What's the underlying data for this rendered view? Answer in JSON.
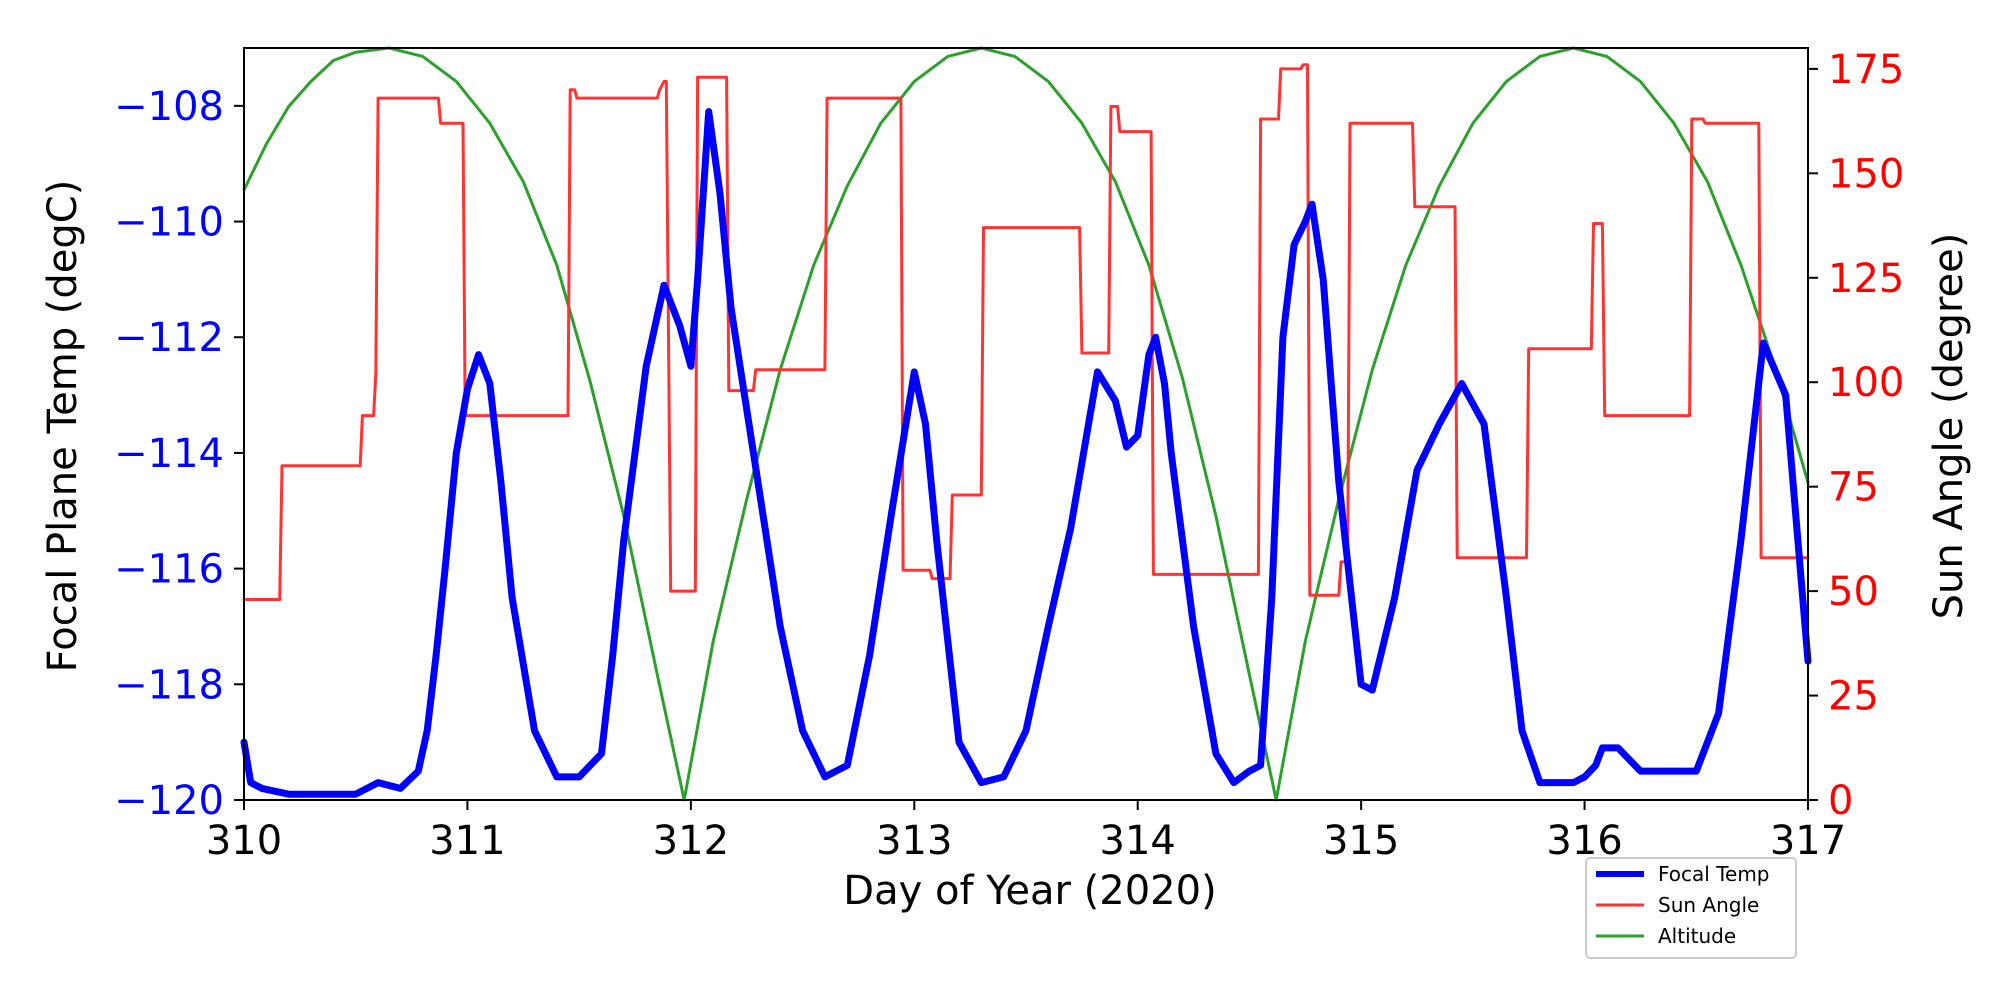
{
  "chart_data": {
    "type": "line",
    "title": "",
    "xlabel": "Day of Year (2020)",
    "ylabel_left": "Focal Plane Temp (degC)",
    "ylabel_right": "Sun Angle (degree)",
    "xlim": [
      310,
      317
    ],
    "ylim_left": [
      -120,
      -107
    ],
    "ylim_right": [
      0,
      180
    ],
    "x_ticks": [
      310,
      311,
      312,
      313,
      314,
      315,
      316,
      317
    ],
    "x_tick_labels": [
      "310",
      "311",
      "312",
      "313",
      "314",
      "315",
      "316",
      "317"
    ],
    "y_left_ticks": [
      -108,
      -110,
      -112,
      -114,
      -116,
      -118,
      -120
    ],
    "y_left_tick_labels": [
      "−108",
      "−110",
      "−112",
      "−114",
      "−116",
      "−118",
      "−120"
    ],
    "y_right_ticks": [
      175,
      150,
      125,
      100,
      75,
      50,
      25,
      0
    ],
    "y_right_tick_labels": [
      "175",
      "150",
      "125",
      "100",
      "75",
      "50",
      "25",
      "0"
    ],
    "grid": false,
    "legend_position": "bottom-right",
    "colors": {
      "left_axis": "#0000ff",
      "right_axis": "#ff0000",
      "focal": "#0000ff",
      "sun": "#ff3333",
      "altitude": "#2ca02c"
    },
    "series": [
      {
        "name": "Focal Temp",
        "axis": "left",
        "x": [
          310.0,
          310.03,
          310.08,
          310.2,
          310.5,
          310.6,
          310.7,
          310.78,
          310.82,
          310.86,
          310.9,
          310.95,
          311.0,
          311.05,
          311.1,
          311.15,
          311.2,
          311.3,
          311.4,
          311.5,
          311.6,
          311.65,
          311.7,
          311.8,
          311.88,
          311.95,
          312.0,
          312.03,
          312.08,
          312.13,
          312.18,
          312.3,
          312.4,
          312.5,
          312.6,
          312.7,
          312.8,
          312.9,
          313.0,
          313.05,
          313.1,
          313.2,
          313.3,
          313.4,
          313.5,
          313.6,
          313.7,
          313.82,
          313.9,
          313.95,
          314.0,
          314.05,
          314.08,
          314.12,
          314.15,
          314.25,
          314.35,
          314.43,
          314.5,
          314.55,
          314.6,
          314.65,
          314.7,
          314.75,
          314.78,
          314.83,
          314.9,
          315.0,
          315.05,
          315.15,
          315.25,
          315.35,
          315.45,
          315.55,
          315.65,
          315.72,
          315.8,
          315.95,
          316.0,
          316.05,
          316.08,
          316.15,
          316.25,
          316.4,
          316.5,
          316.6,
          316.7,
          316.8,
          316.9,
          317.0
        ],
        "values": [
          -119.0,
          -119.7,
          -119.8,
          -119.9,
          -119.9,
          -119.7,
          -119.8,
          -119.5,
          -118.8,
          -117.5,
          -116.0,
          -114.0,
          -112.9,
          -112.3,
          -112.8,
          -114.5,
          -116.5,
          -118.8,
          -119.6,
          -119.6,
          -119.2,
          -117.5,
          -115.5,
          -112.5,
          -111.1,
          -111.8,
          -112.5,
          -111.0,
          -108.1,
          -109.5,
          -111.5,
          -114.5,
          -117.0,
          -118.8,
          -119.6,
          -119.4,
          -117.5,
          -115.0,
          -112.6,
          -113.5,
          -115.5,
          -119.0,
          -119.7,
          -119.6,
          -118.8,
          -117.0,
          -115.3,
          -112.6,
          -113.1,
          -113.9,
          -113.7,
          -112.3,
          -112.0,
          -112.8,
          -114.0,
          -117.0,
          -119.2,
          -119.7,
          -119.5,
          -119.4,
          -116.5,
          -112.0,
          -110.4,
          -110.0,
          -109.7,
          -111.0,
          -114.5,
          -118.0,
          -118.1,
          -116.5,
          -114.3,
          -113.5,
          -112.8,
          -113.5,
          -116.5,
          -118.8,
          -119.7,
          -119.7,
          -119.6,
          -119.4,
          -119.1,
          -119.1,
          -119.5,
          -119.5,
          -119.5,
          -118.5,
          -115.5,
          -112.1,
          -113.0,
          -117.6
        ]
      },
      {
        "name": "Sun Angle",
        "axis": "right",
        "x": [
          310.0,
          310.16,
          310.17,
          310.52,
          310.53,
          310.58,
          310.59,
          310.6,
          310.87,
          310.88,
          310.98,
          310.99,
          311.45,
          311.46,
          311.48,
          311.49,
          311.85,
          311.86,
          311.88,
          311.89,
          311.91,
          312.02,
          312.03,
          312.16,
          312.17,
          312.28,
          312.29,
          312.6,
          312.61,
          312.94,
          312.95,
          313.07,
          313.08,
          313.16,
          313.17,
          313.3,
          313.31,
          313.74,
          313.75,
          313.87,
          313.88,
          313.91,
          313.92,
          314.06,
          314.07,
          314.54,
          314.55,
          314.63,
          314.64,
          314.73,
          314.74,
          314.76,
          314.77,
          314.9,
          314.91,
          314.94,
          314.95,
          315.23,
          315.24,
          315.42,
          315.43,
          315.74,
          315.75,
          316.03,
          316.04,
          316.08,
          316.09,
          316.47,
          316.48,
          316.53,
          316.54,
          316.78,
          316.79,
          317.0
        ],
        "values": [
          48,
          48,
          80,
          80,
          92,
          92,
          102,
          168,
          168,
          162,
          162,
          92,
          92,
          170,
          170,
          168,
          168,
          170,
          172,
          172,
          50,
          50,
          173,
          173,
          98,
          98,
          103,
          103,
          168,
          168,
          55,
          55,
          53,
          53,
          73,
          73,
          137,
          137,
          107,
          107,
          166,
          166,
          160,
          160,
          54,
          54,
          163,
          163,
          175,
          175,
          176,
          176,
          49,
          49,
          57,
          57,
          162,
          162,
          142,
          142,
          58,
          58,
          108,
          108,
          138,
          138,
          92,
          92,
          163,
          163,
          162,
          162,
          58,
          58
        ]
      },
      {
        "name": "Altitude",
        "axis": "right",
        "x": [
          310.0,
          310.1,
          310.2,
          310.3,
          310.4,
          310.5,
          310.65,
          310.8,
          310.95,
          311.1,
          311.25,
          311.4,
          311.55,
          311.7,
          311.85,
          311.97,
          312.1,
          312.25,
          312.4,
          312.55,
          312.7,
          312.85,
          313.0,
          313.15,
          313.3,
          313.45,
          313.6,
          313.75,
          313.9,
          314.05,
          314.2,
          314.35,
          314.5,
          314.62,
          314.75,
          314.9,
          315.05,
          315.2,
          315.35,
          315.5,
          315.65,
          315.8,
          315.95,
          316.1,
          316.25,
          316.4,
          316.55,
          316.7,
          316.85,
          317.0
        ],
        "values": [
          146,
          157,
          166,
          172,
          177,
          179,
          180,
          178,
          172,
          162,
          148,
          128,
          100,
          68,
          30,
          0,
          38,
          72,
          103,
          128,
          147,
          162,
          172,
          178,
          180,
          178,
          172,
          162,
          148,
          128,
          101,
          68,
          30,
          0,
          38,
          72,
          103,
          128,
          147,
          162,
          172,
          178,
          180,
          178,
          172,
          162,
          148,
          128,
          104,
          76
        ]
      }
    ]
  }
}
